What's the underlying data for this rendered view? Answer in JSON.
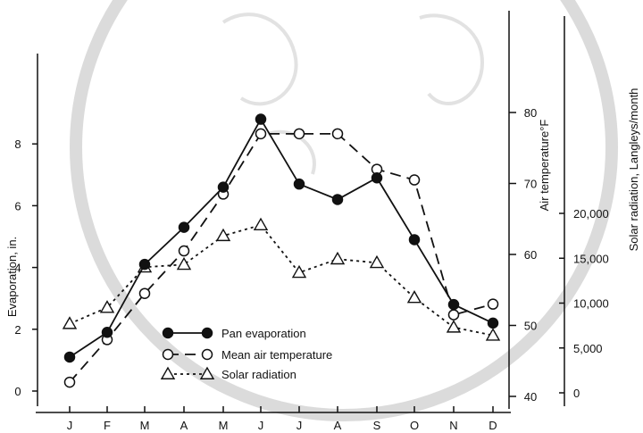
{
  "chart_data": {
    "type": "line",
    "categories": [
      "J",
      "F",
      "M",
      "A",
      "M",
      "J",
      "J",
      "A",
      "S",
      "O",
      "N",
      "D"
    ],
    "axes": {
      "evaporation": {
        "label": "Evaporation, in.",
        "range": [
          0,
          9
        ],
        "ticks": [
          "0",
          "2",
          "4",
          "6",
          "8"
        ]
      },
      "temperature": {
        "label": "Air temperature°F",
        "range": [
          40,
          80
        ],
        "ticks": [
          "40",
          "50",
          "60",
          "70",
          "80"
        ]
      },
      "radiation": {
        "label": "Solar radiation, Langleys/month",
        "range": [
          0,
          20000
        ],
        "ticks": [
          "0",
          "5,000",
          "10,000",
          "15,000",
          "20,000"
        ]
      }
    },
    "series": [
      {
        "name": "Pan evaporation",
        "axis": "evaporation",
        "line": "solid",
        "marker": "filled-circle",
        "values": [
          1.1,
          1.9,
          4.1,
          5.3,
          6.6,
          8.8,
          6.7,
          6.2,
          6.9,
          4.9,
          2.8,
          2.2
        ]
      },
      {
        "name": "Mean air temperature",
        "axis": "temperature",
        "line": "dashed",
        "marker": "open-circle",
        "values": [
          42,
          48,
          54.5,
          60.5,
          68.5,
          77,
          77,
          77,
          72,
          70.5,
          51.5,
          53
        ]
      },
      {
        "name": "Solar radiation",
        "axis": "radiation",
        "line": "dotted",
        "marker": "open-triangle",
        "values": [
          7700,
          9500,
          14000,
          14300,
          17500,
          18700,
          13400,
          14900,
          14500,
          10600,
          7300,
          6400
        ]
      }
    ],
    "legend": "bottom-center",
    "grid": false
  },
  "watermark_color": "#cccccc"
}
